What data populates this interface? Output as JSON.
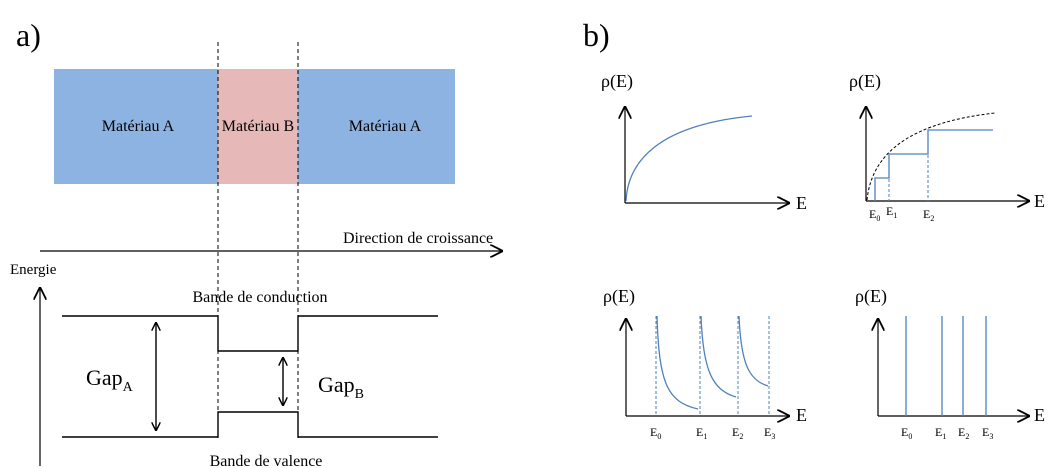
{
  "panel_a": {
    "label": "a)",
    "materials": [
      "Matériau A",
      "Matériau B",
      "Matériau A"
    ],
    "growth_direction": "Direction de croissance",
    "energy_axis": "Energie",
    "conduction_band": "Bande de conduction",
    "valence_band": "Bande de valence",
    "gap_a": {
      "base": "Gap",
      "sub": "A"
    },
    "gap_b": {
      "base": "Gap",
      "sub": "B"
    },
    "colors": {
      "material_a": "#8DB3E2",
      "material_b": "#E6B9B8",
      "curve": "#4F81BD"
    }
  },
  "panel_b": {
    "label": "b)",
    "y_label": "ρ(E)",
    "x_label": "E",
    "plot_top_right_ticks": [
      {
        "base": "E",
        "sub": "0"
      },
      {
        "base": "E",
        "sub": "1"
      },
      {
        "base": "E",
        "sub": "2"
      }
    ],
    "plot_bottom_left_ticks": [
      {
        "base": "E",
        "sub": "0"
      },
      {
        "base": "E",
        "sub": "1"
      },
      {
        "base": "E",
        "sub": "2"
      },
      {
        "base": "E",
        "sub": "3"
      }
    ],
    "plot_bottom_right_ticks": [
      {
        "base": "E",
        "sub": "0"
      },
      {
        "base": "E",
        "sub": "1"
      },
      {
        "base": "E",
        "sub": "2"
      },
      {
        "base": "E",
        "sub": "3"
      }
    ]
  }
}
